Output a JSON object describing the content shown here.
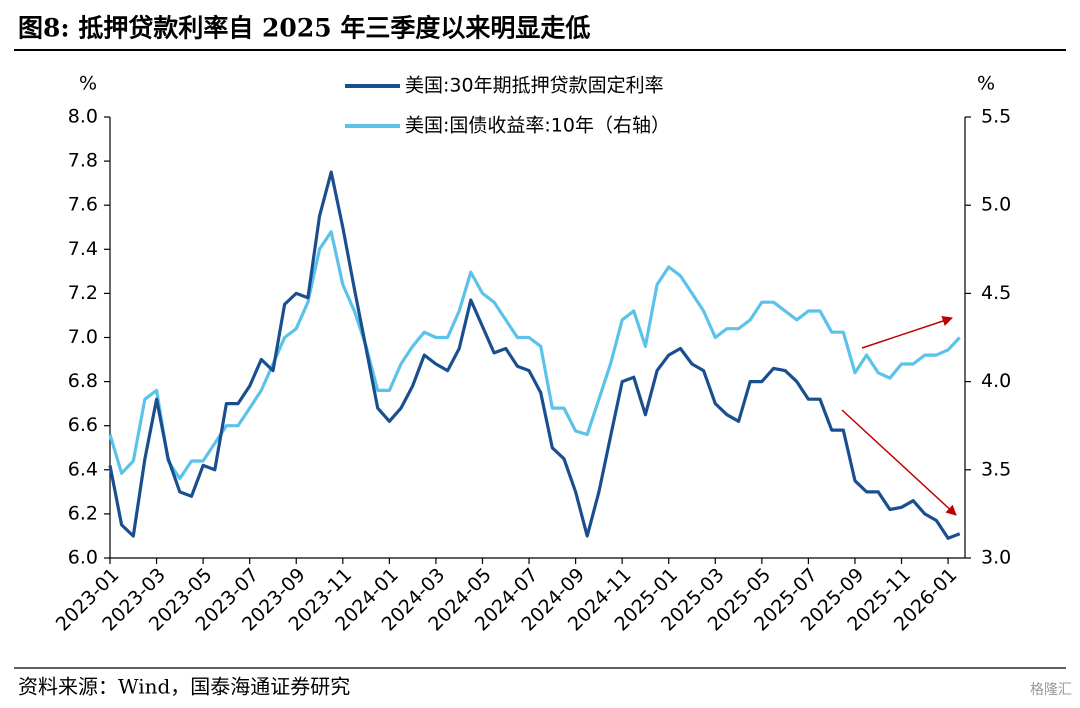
{
  "chart_data": {
    "type": "line",
    "title": "图8:  抵押贷款利率自 2025 年三季度以来明显走低",
    "y_unit": "%",
    "y2_unit": "%",
    "source": "资料来源：Wind，国泰海通证券研究",
    "watermark": "格隆汇",
    "categories": [
      "2023-01",
      null,
      null,
      null,
      "2023-03",
      null,
      null,
      null,
      "2023-05",
      null,
      null,
      null,
      "2023-07",
      null,
      null,
      null,
      "2023-09",
      null,
      null,
      null,
      "2023-11",
      null,
      null,
      null,
      "2024-01",
      null,
      null,
      null,
      "2024-03",
      null,
      null,
      null,
      "2024-05",
      null,
      null,
      null,
      "2024-07",
      null,
      null,
      null,
      "2024-09",
      null,
      null,
      null,
      "2024-11",
      null,
      null,
      null,
      "2025-01",
      null,
      null,
      null,
      "2025-03",
      null,
      null,
      null,
      "2025-05",
      null,
      null,
      null,
      "2025-07",
      null,
      null,
      null,
      "2025-09",
      null,
      null,
      null,
      "2025-11",
      null,
      null,
      null,
      "2026-01",
      null
    ],
    "series": [
      {
        "name": "美国:30年期抵押贷款固定利率",
        "color": "#1a4f8f",
        "axis": "y",
        "values": [
          6.42,
          6.15,
          6.1,
          6.45,
          6.72,
          6.45,
          6.3,
          6.28,
          6.42,
          6.4,
          6.7,
          6.7,
          6.78,
          6.9,
          6.85,
          7.15,
          7.2,
          7.18,
          7.55,
          7.75,
          7.5,
          7.22,
          6.95,
          6.68,
          6.62,
          6.68,
          6.78,
          6.92,
          6.88,
          6.85,
          6.95,
          7.17,
          7.05,
          6.93,
          6.95,
          6.87,
          6.85,
          6.75,
          6.5,
          6.45,
          6.3,
          6.1,
          6.3,
          6.55,
          6.8,
          6.82,
          6.65,
          6.85,
          6.92,
          6.95,
          6.88,
          6.85,
          6.7,
          6.65,
          6.62,
          6.8,
          6.8,
          6.86,
          6.85,
          6.8,
          6.72,
          6.72,
          6.58,
          6.58,
          6.35,
          6.3,
          6.3,
          6.22,
          6.23,
          6.26,
          6.2,
          6.17,
          6.09,
          6.11
        ]
      },
      {
        "name": "美国:国债收益率:10年（右轴）",
        "color": "#5bc2ea",
        "axis": "y2",
        "values": [
          3.7,
          3.48,
          3.55,
          3.9,
          3.95,
          3.55,
          3.45,
          3.55,
          3.55,
          3.65,
          3.75,
          3.75,
          3.85,
          3.95,
          4.1,
          4.25,
          4.3,
          4.45,
          4.75,
          4.85,
          4.55,
          4.4,
          4.2,
          3.95,
          3.95,
          4.1,
          4.2,
          4.28,
          4.25,
          4.25,
          4.4,
          4.62,
          4.5,
          4.45,
          4.35,
          4.25,
          4.25,
          4.2,
          3.85,
          3.85,
          3.72,
          3.7,
          3.9,
          4.1,
          4.35,
          4.4,
          4.2,
          4.55,
          4.65,
          4.6,
          4.5,
          4.4,
          4.25,
          4.3,
          4.3,
          4.35,
          4.45,
          4.45,
          4.4,
          4.35,
          4.4,
          4.4,
          4.28,
          4.28,
          4.05,
          4.15,
          4.05,
          4.02,
          4.1,
          4.1,
          4.15,
          4.15,
          4.18,
          4.25
        ]
      }
    ],
    "ylim": [
      6.0,
      8.0
    ],
    "yticks": [
      {
        "value": 6.0,
        "label": "6.0"
      },
      6.2,
      6.4,
      6.6,
      6.8,
      {
        "value": 7.0,
        "label": "7.0"
      },
      7.2,
      7.4,
      7.6,
      7.8,
      {
        "value": 8.0,
        "label": "8.0"
      }
    ],
    "y2lim": [
      3.0,
      5.5
    ],
    "y2ticks": [
      {
        "value": 3.0,
        "label": "3.0"
      },
      3.5,
      {
        "value": 4.0,
        "label": "4.0"
      },
      4.5,
      {
        "value": 5.0,
        "label": "5.0"
      },
      5.5
    ]
  }
}
